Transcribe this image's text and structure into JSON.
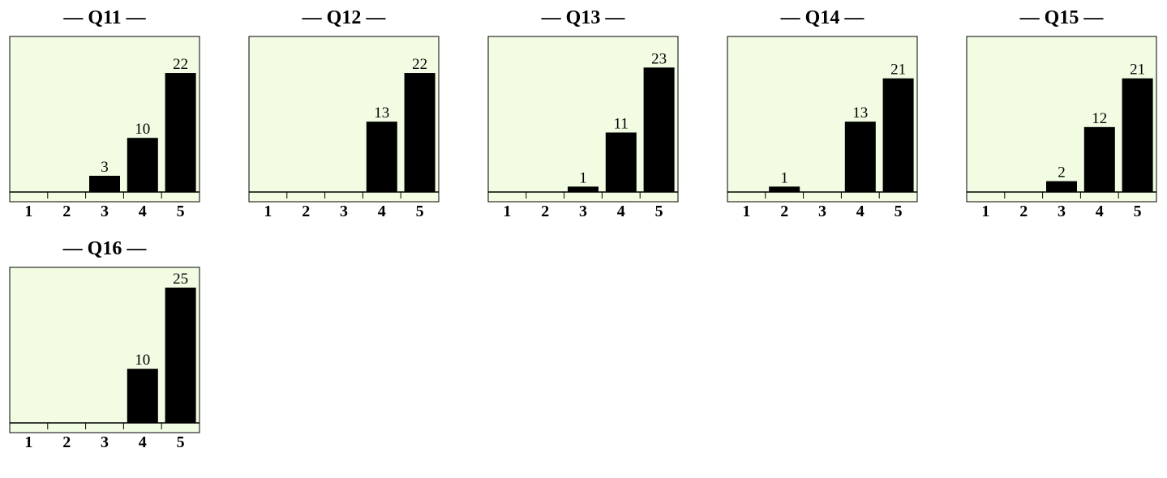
{
  "chart_data": [
    {
      "type": "bar",
      "title": "— Q11 —",
      "categories": [
        "1",
        "2",
        "3",
        "4",
        "5"
      ],
      "values": [
        0,
        0,
        3,
        10,
        22
      ],
      "data_labels": [
        "",
        "",
        "3",
        "10",
        "22"
      ],
      "ylim": [
        0,
        25
      ],
      "grid": false,
      "background": "#f1fce3",
      "bar_color": "#000000"
    },
    {
      "type": "bar",
      "title": "— Q12 —",
      "categories": [
        "1",
        "2",
        "3",
        "4",
        "5"
      ],
      "values": [
        0,
        0,
        0,
        13,
        22
      ],
      "data_labels": [
        "",
        "",
        "",
        "13",
        "22"
      ],
      "ylim": [
        0,
        25
      ],
      "grid": false,
      "background": "#f1fce3",
      "bar_color": "#000000"
    },
    {
      "type": "bar",
      "title": "— Q13 —",
      "categories": [
        "1",
        "2",
        "3",
        "4",
        "5"
      ],
      "values": [
        0,
        0,
        1,
        11,
        23
      ],
      "data_labels": [
        "",
        "",
        "1",
        "11",
        "23"
      ],
      "ylim": [
        0,
        25
      ],
      "grid": false,
      "background": "#f1fce3",
      "bar_color": "#000000"
    },
    {
      "type": "bar",
      "title": "— Q14 —",
      "categories": [
        "1",
        "2",
        "3",
        "4",
        "5"
      ],
      "values": [
        0,
        1,
        0,
        13,
        21
      ],
      "data_labels": [
        "",
        "1",
        "",
        "13",
        "21"
      ],
      "ylim": [
        0,
        25
      ],
      "grid": false,
      "background": "#f1fce3",
      "bar_color": "#000000"
    },
    {
      "type": "bar",
      "title": "— Q15 —",
      "categories": [
        "1",
        "2",
        "3",
        "4",
        "5"
      ],
      "values": [
        0,
        0,
        2,
        12,
        21
      ],
      "data_labels": [
        "",
        "",
        "2",
        "12",
        "21"
      ],
      "ylim": [
        0,
        25
      ],
      "grid": false,
      "background": "#f1fce3",
      "bar_color": "#000000"
    },
    {
      "type": "bar",
      "title": "— Q16 —",
      "categories": [
        "1",
        "2",
        "3",
        "4",
        "5"
      ],
      "values": [
        0,
        0,
        0,
        10,
        25
      ],
      "data_labels": [
        "",
        "",
        "",
        "10",
        "25"
      ],
      "ylim": [
        0,
        25
      ],
      "grid": false,
      "background": "#f1fce3",
      "bar_color": "#000000"
    }
  ]
}
